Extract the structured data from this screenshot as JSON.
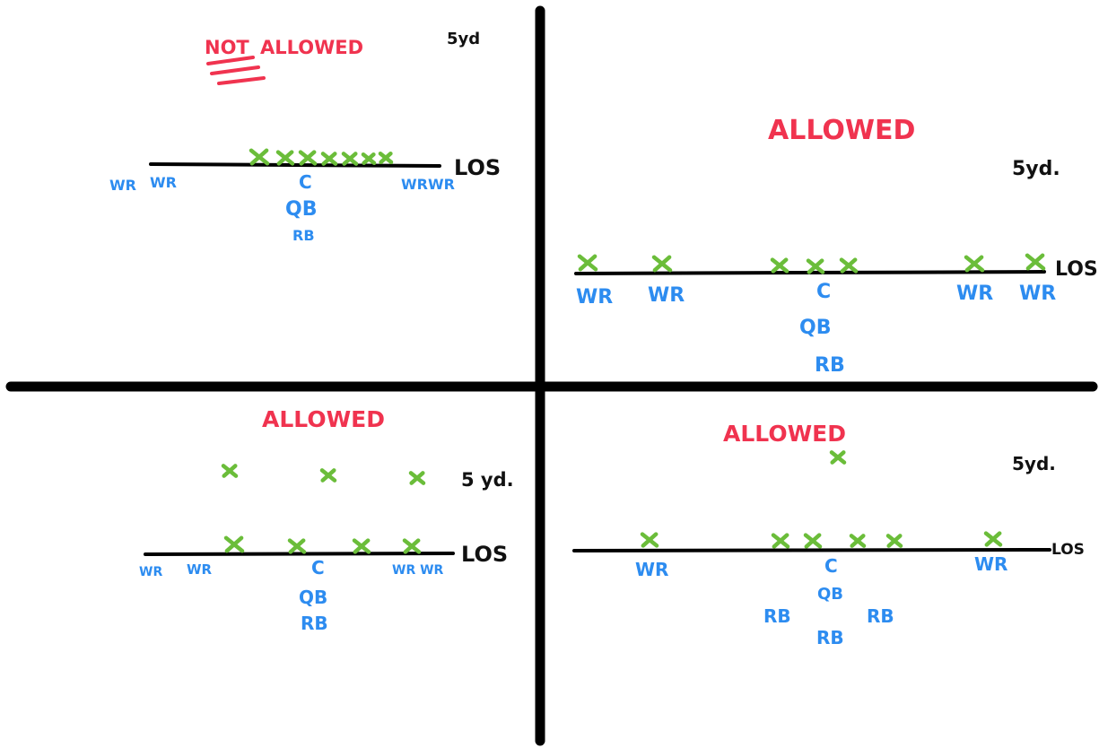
{
  "quadrants": {
    "top_left": {
      "verdict": "ALLOWED",
      "prefix": "NOT",
      "yard_label": "5yd",
      "los_label": "LOS",
      "center": "C",
      "qb": "QB",
      "rb": "RB",
      "wr_left": [
        "WR",
        "WR"
      ],
      "wr_right": "WRWR",
      "line_marks": 7,
      "back_marks": 0
    },
    "top_right": {
      "verdict": "ALLOWED",
      "yard_label": "5yd.",
      "los_label": "LOS",
      "center": "C",
      "qb": "QB",
      "rb": "RB",
      "wr_left": [
        "WR",
        "WR"
      ],
      "wr_right": [
        "WR",
        "WR"
      ],
      "line_marks": 7,
      "back_marks": 0
    },
    "bottom_left": {
      "verdict": "ALLOWED",
      "yard_label": "5 yd.",
      "los_label": "LOS",
      "center": "C",
      "qb": "QB",
      "rb": "RB",
      "wr_left": [
        "WR",
        "WR"
      ],
      "wr_right": "WR WR",
      "line_marks": 4,
      "back_marks": 3
    },
    "bottom_right": {
      "verdict": "ALLOWED",
      "yard_label": "5yd.",
      "los_label": "LOS",
      "center": "C",
      "qb": "QB",
      "rb_left": "RB",
      "rb_right": "RB",
      "rb_bottom": "RB",
      "wr_left": "WR",
      "wr_right": "WR",
      "line_marks": 6,
      "back_marks": 1
    }
  },
  "colors": {
    "verdict": "#f0334f",
    "offense": "#2d8cf0",
    "defense": "#6bbd3a",
    "line": "#000000"
  }
}
